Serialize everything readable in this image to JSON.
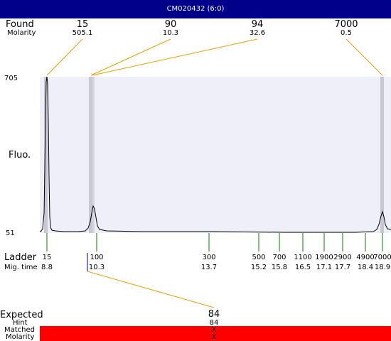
{
  "window": {
    "title": "CM020432 (6:0)"
  },
  "found": {
    "label": "Found",
    "sublabel": "Molarity",
    "peaks": [
      {
        "size": "15",
        "molarity": "505.1"
      },
      {
        "size": "90",
        "molarity": "10.3"
      },
      {
        "size": "94",
        "molarity": "32.6"
      },
      {
        "size": "7000",
        "molarity": "0.5"
      }
    ]
  },
  "plot": {
    "y_label": "Fluo.",
    "y_max": "705",
    "y_min": "51"
  },
  "ladder": {
    "label": "Ladder",
    "sublabel": "Mig. time",
    "items": [
      {
        "size": "15",
        "time": "8.8"
      },
      {
        "size": "100",
        "time": "10.3"
      },
      {
        "size": "300",
        "time": "13.7"
      },
      {
        "size": "500",
        "time": "15.2"
      },
      {
        "size": "700",
        "time": "15.8"
      },
      {
        "size": "1100",
        "time": "16.5"
      },
      {
        "size": "1900",
        "time": "17.1"
      },
      {
        "size": "2900",
        "time": "17.7"
      },
      {
        "size": "4900",
        "time": "18.4"
      },
      {
        "size": "7000",
        "time": "18.9"
      }
    ]
  },
  "expected": {
    "label": "Expected",
    "value": "84",
    "hint_label": "Hint",
    "hint_value": "84",
    "matched_label": "Matched",
    "matched_value": "X",
    "molarity_label": "Molarity",
    "molarity_value": "X"
  },
  "colors": {
    "title_bg": "#00008b",
    "plot_bg": "#efeffa",
    "peak_band": "#c8c8d4",
    "connector": "#e6a000",
    "ladder_tick": "#008000",
    "mismatch_bar": "#ff0000"
  }
}
